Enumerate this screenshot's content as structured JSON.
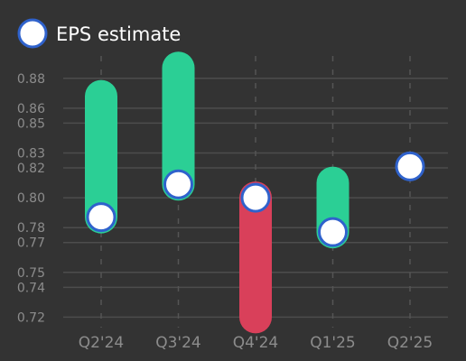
{
  "chart_data": {
    "type": "range-bar-with-markers",
    "legend": {
      "label": "EPS estimate",
      "placement": "top-left"
    },
    "y_ticks": [
      "0.72",
      "0.74",
      "0.75",
      "0.77",
      "0.78",
      "0.80",
      "0.82",
      "0.83",
      "0.85",
      "0.86",
      "0.88"
    ],
    "ylim": [
      0.713,
      0.895
    ],
    "categories": [
      "Q2'24",
      "Q3'24",
      "Q4'24",
      "Q1'25",
      "Q2'25"
    ],
    "estimate": [
      0.787,
      0.809,
      0.8,
      0.777,
      0.821
    ],
    "actual": [
      0.868,
      0.887,
      0.72,
      0.81,
      null
    ],
    "grid": {
      "horizontal": true,
      "vertical_dashed": true
    },
    "colors": {
      "background": "#333333",
      "grid": "#4d4d4d",
      "vgrid": "#555555",
      "beat": "#2bcf95",
      "miss": "#d9405a",
      "marker_fill": "#ffffff",
      "marker_stroke": "#2f62cc"
    }
  }
}
